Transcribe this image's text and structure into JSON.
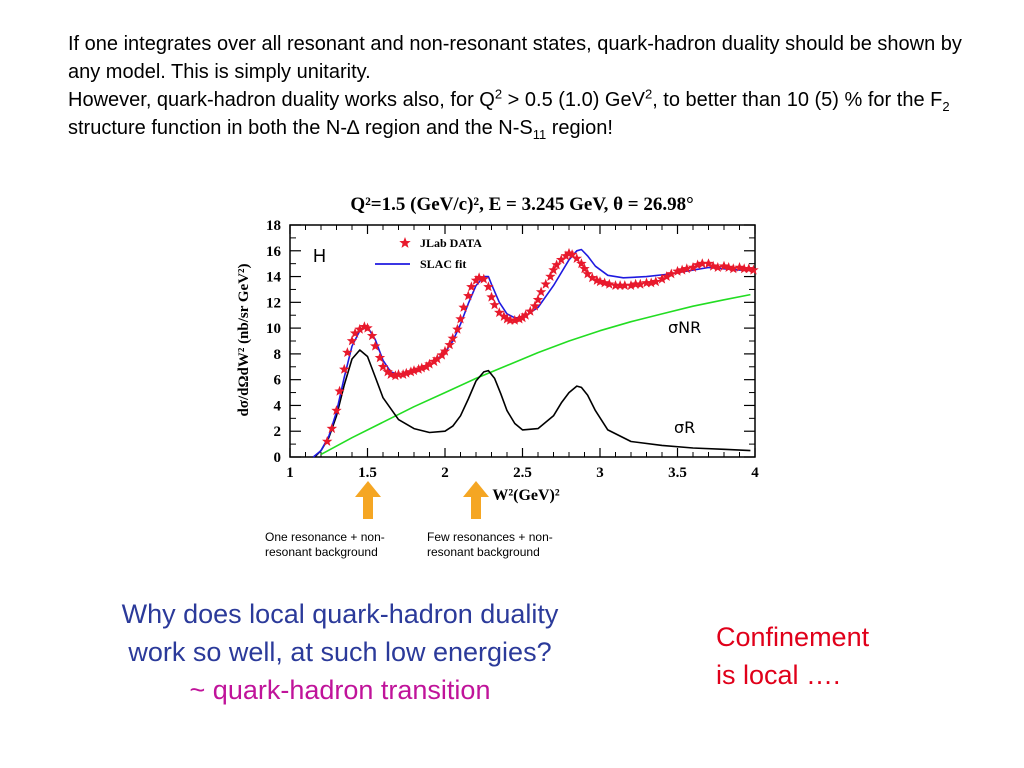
{
  "intro": {
    "line1": "If one integrates over all resonant and non-resonant states, quark-hadron duality should be shown by any model. This is simply unitarity.",
    "line2_a": "However, quark-hadron duality works also, for Q",
    "line2_sup": "2",
    "line2_b": " > 0.5 (1.0) GeV",
    "line2_sup2": "2",
    "line2_c": ", to better than 10 (5) % for the F",
    "line2_sub": "2",
    "line2_d": " structure function in both the N-∆ region and the N-S",
    "line2_sub2": "11",
    "line2_e": " region!"
  },
  "chart_data": {
    "type": "line",
    "title": "Q²=1.5 (GeV/c)², E = 3.245 GeV, θ = 26.98°",
    "xlabel": "W²(GeV)²",
    "ylabel": "dσ/dΩdW² (nb/sr GeV²)",
    "xlim": [
      1,
      4
    ],
    "ylim": [
      0,
      18
    ],
    "xticks": [
      "1",
      "1.5",
      "2",
      "2.5",
      "3",
      "3.5",
      "4"
    ],
    "yticks": [
      "0",
      "2",
      "4",
      "6",
      "8",
      "10",
      "12",
      "14",
      "16",
      "18"
    ],
    "panel_label": "H",
    "legend_position": "top-left",
    "series": [
      {
        "name": "JLab DATA",
        "style": "star",
        "color": "#e8192c",
        "x": [
          1.24,
          1.27,
          1.3,
          1.32,
          1.35,
          1.37,
          1.4,
          1.42,
          1.45,
          1.48,
          1.5,
          1.53,
          1.55,
          1.58,
          1.6,
          1.63,
          1.65,
          1.68,
          1.7,
          1.73,
          1.75,
          1.78,
          1.8,
          1.83,
          1.85,
          1.88,
          1.9,
          1.93,
          1.95,
          1.98,
          2.0,
          2.03,
          2.05,
          2.08,
          2.1,
          2.12,
          2.15,
          2.17,
          2.2,
          2.22,
          2.25,
          2.28,
          2.3,
          2.32,
          2.35,
          2.38,
          2.4,
          2.42,
          2.45,
          2.48,
          2.5,
          2.52,
          2.55,
          2.58,
          2.6,
          2.62,
          2.65,
          2.68,
          2.7,
          2.72,
          2.75,
          2.78,
          2.8,
          2.82,
          2.85,
          2.88,
          2.9,
          2.92,
          2.95,
          2.98,
          3.0,
          3.03,
          3.06,
          3.1,
          3.13,
          3.16,
          3.2,
          3.23,
          3.26,
          3.3,
          3.33,
          3.36,
          3.4,
          3.43,
          3.46,
          3.5,
          3.53,
          3.56,
          3.6,
          3.63,
          3.66,
          3.7,
          3.73,
          3.76,
          3.8,
          3.83,
          3.86,
          3.9,
          3.93,
          3.96,
          3.99
        ],
        "y": [
          1.2,
          2.2,
          3.6,
          5.1,
          6.8,
          8.1,
          9.0,
          9.6,
          9.9,
          10.1,
          10.0,
          9.4,
          8.6,
          7.7,
          7.0,
          6.6,
          6.4,
          6.3,
          6.4,
          6.4,
          6.5,
          6.6,
          6.7,
          6.8,
          6.9,
          7.0,
          7.2,
          7.4,
          7.6,
          7.9,
          8.2,
          8.7,
          9.2,
          9.9,
          10.7,
          11.6,
          12.5,
          13.2,
          13.7,
          13.9,
          13.8,
          13.2,
          12.4,
          11.8,
          11.2,
          10.9,
          10.7,
          10.6,
          10.6,
          10.7,
          10.8,
          11.0,
          11.3,
          11.7,
          12.2,
          12.8,
          13.4,
          14.0,
          14.5,
          14.9,
          15.3,
          15.6,
          15.8,
          15.7,
          15.4,
          15.0,
          14.6,
          14.2,
          13.9,
          13.7,
          13.6,
          13.5,
          13.4,
          13.3,
          13.3,
          13.3,
          13.3,
          13.4,
          13.4,
          13.5,
          13.5,
          13.6,
          13.8,
          14.0,
          14.2,
          14.4,
          14.5,
          14.6,
          14.7,
          14.9,
          15.0,
          15.0,
          14.8,
          14.7,
          14.8,
          14.7,
          14.6,
          14.7,
          14.6,
          14.6,
          14.5
        ]
      },
      {
        "name": "SLAC fit",
        "style": "line",
        "color": "#1f1ae0",
        "x": [
          1.15,
          1.2,
          1.25,
          1.3,
          1.35,
          1.4,
          1.45,
          1.5,
          1.55,
          1.6,
          1.65,
          1.7,
          1.8,
          1.9,
          2.0,
          2.05,
          2.1,
          2.15,
          2.2,
          2.25,
          2.28,
          2.3,
          2.35,
          2.4,
          2.45,
          2.5,
          2.6,
          2.7,
          2.8,
          2.85,
          2.88,
          2.92,
          2.97,
          3.05,
          3.15,
          3.3,
          3.45,
          3.6,
          3.7,
          3.8,
          3.9,
          4.0
        ],
        "y": [
          0.0,
          0.5,
          1.6,
          3.5,
          6.2,
          8.6,
          9.8,
          10.1,
          9.1,
          7.5,
          6.6,
          6.4,
          6.6,
          7.1,
          8.1,
          9.0,
          10.3,
          11.9,
          13.3,
          14.0,
          14.0,
          13.4,
          12.0,
          11.1,
          10.8,
          10.8,
          11.6,
          13.3,
          15.3,
          16.0,
          16.1,
          15.6,
          14.8,
          14.1,
          13.9,
          14.0,
          14.2,
          14.5,
          14.7,
          14.6,
          14.5,
          14.5
        ]
      },
      {
        "name": "σNR",
        "style": "line",
        "color": "#22dd22",
        "x": [
          1.2,
          1.4,
          1.6,
          1.8,
          2.0,
          2.2,
          2.4,
          2.6,
          2.8,
          3.0,
          3.2,
          3.4,
          3.6,
          3.8,
          3.97
        ],
        "y": [
          0.2,
          1.5,
          2.7,
          3.9,
          5.0,
          6.1,
          7.1,
          8.1,
          9.0,
          9.8,
          10.5,
          11.1,
          11.7,
          12.2,
          12.6
        ]
      },
      {
        "name": "σR",
        "style": "line",
        "color": "#000000",
        "x": [
          1.16,
          1.2,
          1.25,
          1.3,
          1.35,
          1.4,
          1.45,
          1.5,
          1.55,
          1.6,
          1.7,
          1.8,
          1.9,
          2.0,
          2.05,
          2.1,
          2.15,
          2.2,
          2.25,
          2.28,
          2.32,
          2.36,
          2.4,
          2.45,
          2.5,
          2.6,
          2.7,
          2.75,
          2.8,
          2.85,
          2.88,
          2.92,
          2.97,
          3.05,
          3.2,
          3.4,
          3.6,
          3.8,
          3.97
        ],
        "y": [
          0.0,
          0.5,
          1.5,
          3.2,
          5.6,
          7.6,
          8.3,
          7.8,
          6.2,
          4.6,
          2.9,
          2.2,
          1.9,
          2.0,
          2.4,
          3.2,
          4.5,
          5.9,
          6.6,
          6.7,
          6.1,
          4.9,
          3.6,
          2.6,
          2.1,
          2.2,
          3.2,
          4.2,
          5.0,
          5.5,
          5.4,
          4.8,
          3.6,
          2.1,
          1.2,
          0.9,
          0.7,
          0.6,
          0.5
        ]
      }
    ],
    "series_labels": [
      "σNR",
      "σR"
    ]
  },
  "annotations": {
    "arrow1_caption": "One resonance + non-resonant background",
    "arrow2_caption": "Few resonances + non-resonant background",
    "arrow_color": "#f5a623"
  },
  "question": {
    "line1": "Why does local quark-hadron duality",
    "line2": "work so well, at such low energies?",
    "line3": "~ quark-hadron transition"
  },
  "confinement": {
    "line1": "Confinement",
    "line2": "is local …."
  }
}
